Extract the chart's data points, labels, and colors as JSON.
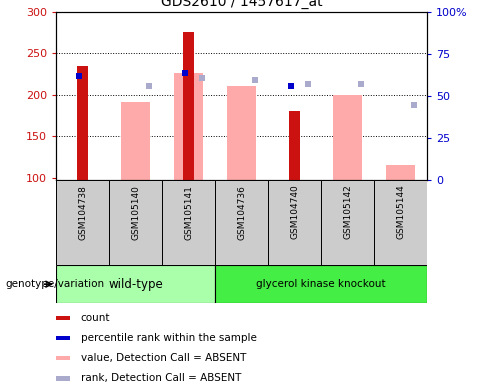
{
  "title": "GDS2610 / 1457617_at",
  "samples": [
    "GSM104738",
    "GSM105140",
    "GSM105141",
    "GSM104736",
    "GSM104740",
    "GSM105142",
    "GSM105144"
  ],
  "wild_type_count": 3,
  "knockout_count": 4,
  "ylim_left": [
    97,
    300
  ],
  "ylim_right": [
    0,
    100
  ],
  "yticks_left": [
    100,
    150,
    200,
    250,
    300
  ],
  "yticks_right": [
    0,
    25,
    50,
    75,
    100
  ],
  "ytick_labels_right": [
    "0",
    "25",
    "50",
    "75",
    "100%"
  ],
  "red_bars": [
    235,
    null,
    275,
    null,
    180,
    null,
    null
  ],
  "pink_bars": [
    null,
    191,
    226,
    210,
    null,
    200,
    115
  ],
  "blue_squares": [
    222,
    null,
    226,
    null,
    210,
    null,
    null
  ],
  "purple_squares": [
    null,
    210,
    220,
    218,
    213,
    213,
    188
  ],
  "red_color": "#cc1111",
  "pink_color": "#ffaaaa",
  "blue_color": "#0000cc",
  "purple_color": "#aaaacc",
  "wildtype_color": "#aaffaa",
  "knockout_color": "#44ee44",
  "group_label": "genotype/variation",
  "wildtype_label": "wild-type",
  "knockout_label": "glycerol kinase knockout",
  "legend_items": [
    "count",
    "percentile rank within the sample",
    "value, Detection Call = ABSENT",
    "rank, Detection Call = ABSENT"
  ],
  "legend_colors": [
    "#cc1111",
    "#0000cc",
    "#ffaaaa",
    "#aaaacc"
  ],
  "background_color": "#ffffff",
  "gray_color": "#cccccc"
}
